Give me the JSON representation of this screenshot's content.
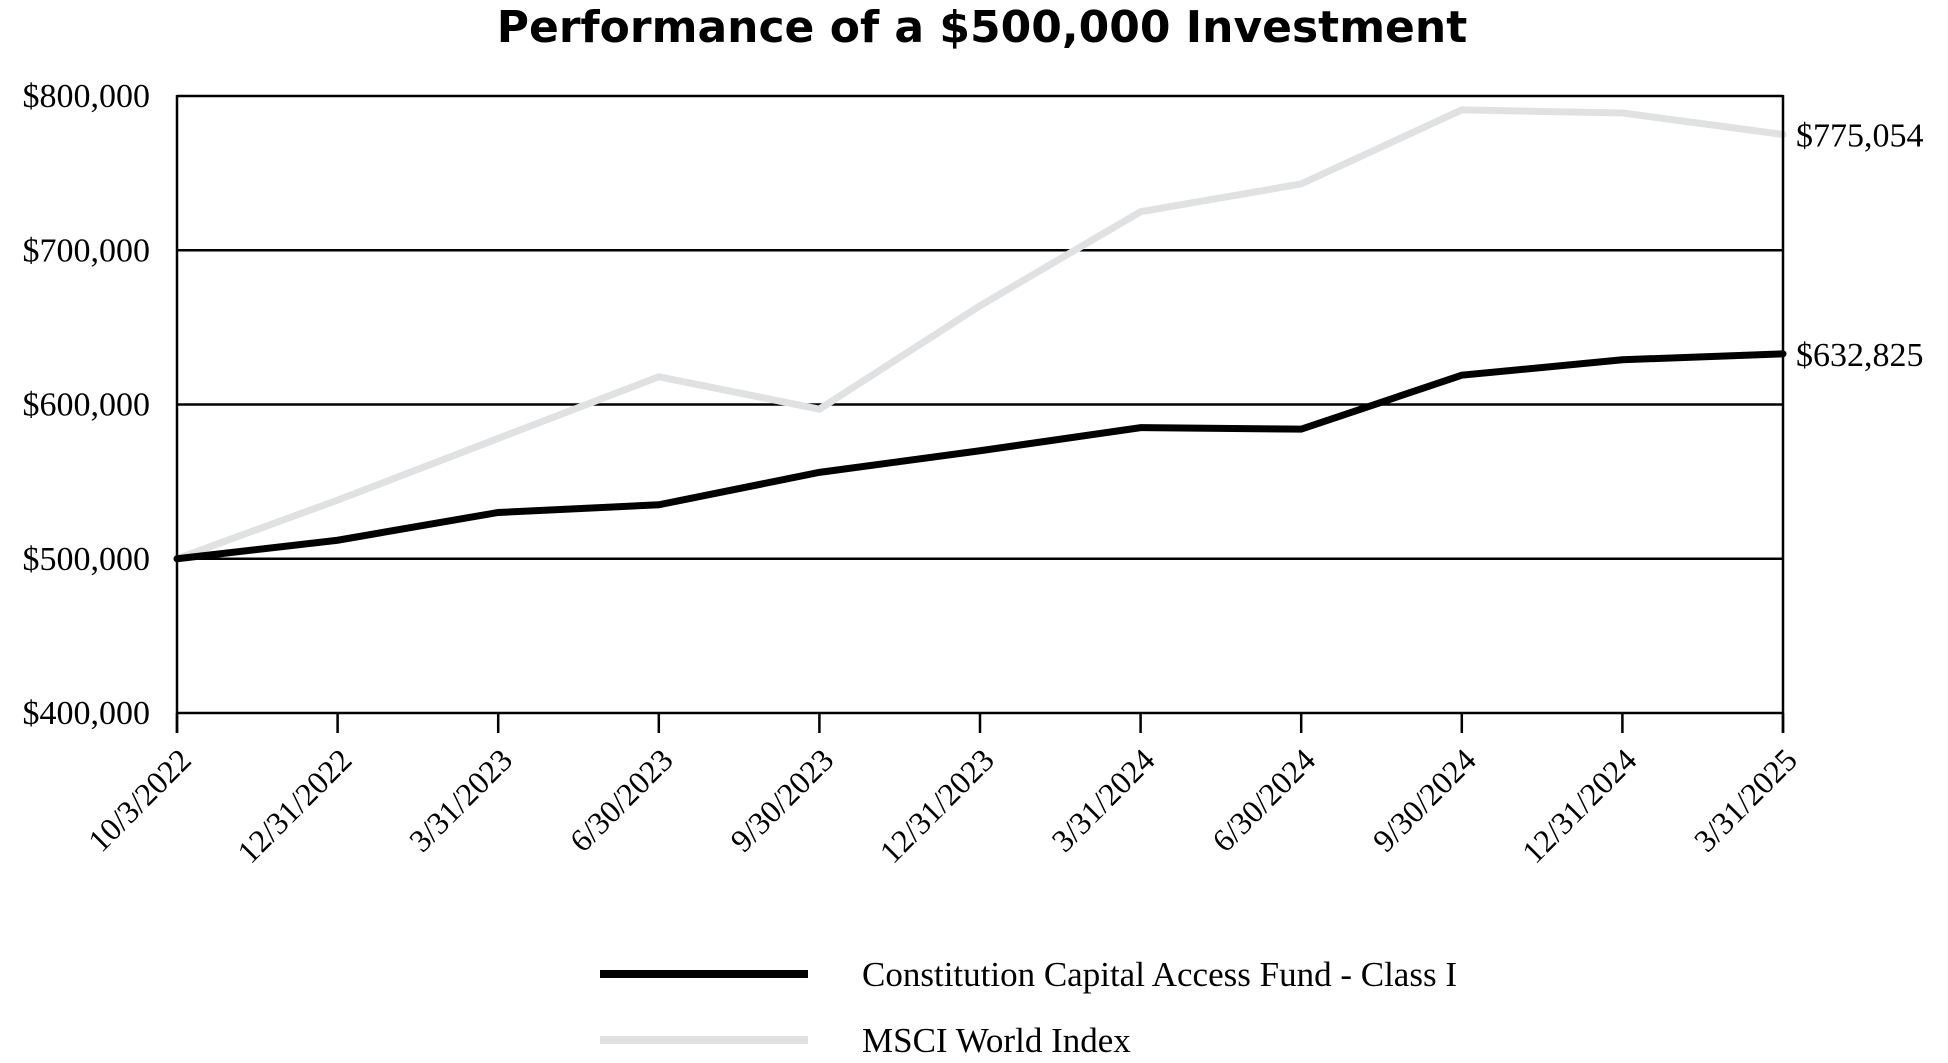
{
  "chart_data": {
    "type": "line",
    "title": "Performance of a $500,000 Investment",
    "xlabel": "",
    "ylabel": "",
    "ylim": [
      400000,
      800000
    ],
    "yticks": [
      400000,
      500000,
      600000,
      700000,
      800000
    ],
    "ytick_labels": [
      "$400,000",
      "$500,000",
      "$600,000",
      "$700,000",
      "$800,000"
    ],
    "grid": true,
    "categories": [
      "10/3/2022",
      "12/31/2022",
      "3/31/2023",
      "6/30/2023",
      "9/30/2023",
      "12/31/2023",
      "3/31/2024",
      "6/30/2024",
      "9/30/2024",
      "12/31/2024",
      "3/31/2025"
    ],
    "series": [
      {
        "name": "Constitution Capital Access Fund - Class I",
        "color": "#000000",
        "values": [
          500000,
          512000,
          530000,
          535000,
          556000,
          570000,
          585000,
          584000,
          619000,
          629000,
          632825
        ],
        "end_label": "$632,825"
      },
      {
        "name": "MSCI World Index",
        "color": "#e0e1e2",
        "values": [
          500000,
          538000,
          578000,
          618000,
          597000,
          664000,
          725000,
          743000,
          791000,
          789000,
          775054
        ],
        "end_label": "$775,054"
      }
    ],
    "legend_position": "bottom"
  }
}
